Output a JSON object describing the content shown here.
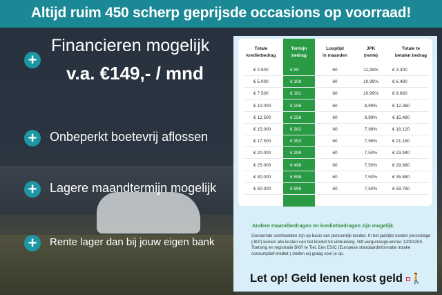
{
  "header": {
    "title": "Altijd ruim 450 scherp geprijsde occasions op voorraad!"
  },
  "features": [
    {
      "icon": "plus-icon",
      "line1": "Financieren mogelijk",
      "line2": "v.a. €149,- / mnd"
    },
    {
      "icon": "plus-icon",
      "text": "Onbeperkt boetevrij aflossen"
    },
    {
      "icon": "plus-icon",
      "text": "Lagere maandtermijn mogelijk"
    },
    {
      "icon": "plus-icon",
      "text": "Rente lager dan bij jouw eigen bank"
    }
  ],
  "table": {
    "headers": [
      [
        "Totale",
        "kredietbedrag"
      ],
      [
        "Termijn",
        "bedrag"
      ],
      [
        "Looptijd",
        "in maanden"
      ],
      [
        "JPK",
        "(rente)"
      ],
      [
        "Totale te",
        "betalen bedrag"
      ]
    ],
    "rows": [
      [
        "€ 2.500",
        "€ 55",
        "60",
        "11,99%",
        "€ 3.300"
      ],
      [
        "€ 5.000",
        "€ 108",
        "60",
        "10,99%",
        "€ 6.480"
      ],
      [
        "€ 7.500",
        "€ 161",
        "60",
        "10,99%",
        "€ 9.660"
      ],
      [
        "€ 10.000",
        "€ 206",
        "60",
        "8,99%",
        "€ 12.360"
      ],
      [
        "€ 12.500",
        "€ 258",
        "60",
        "8,99%",
        "€ 15.480"
      ],
      [
        "€ 15.000",
        "€ 302",
        "60",
        "7,99%",
        "€ 18.120"
      ],
      [
        "€ 17.500",
        "€ 353",
        "60",
        "7,99%",
        "€ 21.180"
      ],
      [
        "€ 20.000",
        "€ 399",
        "60",
        "7,50%",
        "€ 23.940"
      ],
      [
        "€ 25.000",
        "€ 498",
        "60",
        "7,50%",
        "€ 29.880"
      ],
      [
        "€ 30.000",
        "€ 598",
        "60",
        "7,50%",
        "€ 35.880"
      ],
      [
        "€ 50.000",
        "€ 996",
        "60",
        "7,50%",
        "€ 59.760"
      ]
    ],
    "highlight_color": "#2a9a45"
  },
  "note": {
    "title": "Andere maandbedragen en kredietbedragen zijn mogelijk.",
    "body": "Genoemde voorbeelden zijn op basis van persoonlijk krediet. In het jaarlijks kosten percentage (JKP) komen alle kosten van het krediet tot uitdrukking. Wft-vergunningnummer 12003200. Toetsing en registratie BKR te Tiel. Een ESIC (Europese standaardinformatie inzake consumptief krediet ) stellen wij graag voor je op."
  },
  "warning": {
    "text": "Let op! Geld lenen kost geld",
    "icon": "person-with-ball-and-chain-icon"
  },
  "colors": {
    "header": "#1a8895",
    "plus": "#1d97a5",
    "panel": "#d8eef8"
  }
}
